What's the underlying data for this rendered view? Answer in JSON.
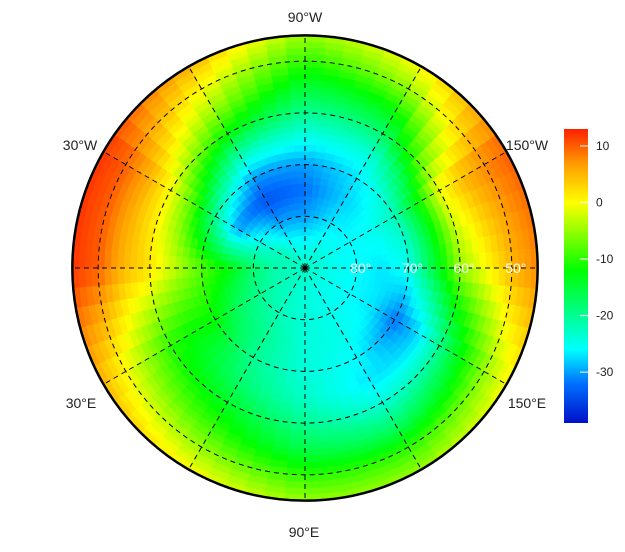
{
  "chart_data": {
    "type": "heatmap",
    "projection": "north polar stereographic",
    "lat_min": 45,
    "lat": [
      45,
      50,
      55,
      60,
      65,
      70,
      75,
      80,
      85,
      90
    ],
    "lon": [
      0,
      30,
      60,
      90,
      120,
      150,
      180,
      210,
      240,
      270,
      300,
      330
    ],
    "values": [
      [
        12,
        10,
        5,
        2,
        -3,
        -8,
        -12,
        -18,
        -22,
        -23
      ],
      [
        5,
        0,
        -5,
        -10,
        -12,
        -12,
        -17,
        -20,
        -22,
        -23
      ],
      [
        0,
        -5,
        -10,
        -14,
        -18,
        -20,
        -20,
        -22,
        -23,
        -23
      ],
      [
        -5,
        -10,
        -16,
        -20,
        -23,
        -24,
        -24,
        -24,
        -24,
        -23
      ],
      [
        -5,
        -10,
        -18,
        -24,
        -27,
        -26,
        -25,
        -25,
        -25,
        -23
      ],
      [
        0,
        -5,
        -12,
        -20,
        -28,
        -32,
        -27,
        -26,
        -25,
        -23
      ],
      [
        8,
        5,
        0,
        -5,
        -15,
        -25,
        -27,
        -26,
        -25,
        -23
      ],
      [
        10,
        8,
        5,
        0,
        -12,
        -22,
        -25,
        -26,
        -25,
        -23
      ],
      [
        0,
        -5,
        -12,
        -18,
        -24,
        -27,
        -28,
        -27,
        -25,
        -23
      ],
      [
        -5,
        -10,
        -15,
        -20,
        -25,
        -30,
        -32,
        -30,
        -26,
        -23
      ],
      [
        5,
        0,
        -5,
        -12,
        -22,
        -30,
        -34,
        -30,
        -25,
        -23
      ],
      [
        12,
        10,
        6,
        0,
        -8,
        -20,
        -30,
        -25,
        -22,
        -23
      ]
    ],
    "lon_labels": [
      {
        "lon": 270,
        "text": "90°W"
      },
      {
        "lon": 330,
        "text": "30°W"
      },
      {
        "lon": 210,
        "text": "150°W"
      },
      {
        "lon": 30,
        "text": "30°E"
      },
      {
        "lon": 150,
        "text": "150°E"
      },
      {
        "lon": 90,
        "text": "90°E"
      }
    ],
    "lat_circles": [
      80,
      70,
      60,
      50
    ],
    "lat_labels": [
      "80°",
      "70°",
      "60°",
      "50°"
    ],
    "meridians_every": 30,
    "grid": true,
    "colorbar": {
      "range": [
        -39,
        13
      ],
      "ticks": [
        10,
        0,
        -10,
        -20,
        -30
      ],
      "tick_labels": [
        "10",
        "0",
        "-10",
        "-20",
        "-30"
      ],
      "placement": "right",
      "colors": [
        "#0010c8",
        "#0070ff",
        "#00ffff",
        "#00ff00",
        "#ffff00",
        "#ff9900",
        "#ff2000"
      ],
      "color_stops": [
        -39,
        -32,
        -26,
        -12,
        0,
        7,
        13
      ]
    }
  }
}
